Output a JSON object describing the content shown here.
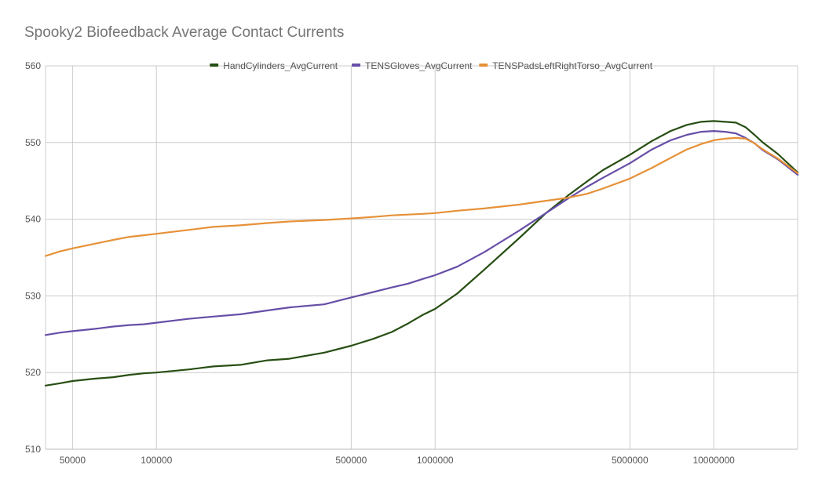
{
  "chart_data": {
    "type": "line",
    "title": "Spooky2 Biofeedback Average Contact Currents",
    "xlabel": "",
    "ylabel": "",
    "x_scale": "log",
    "xlim": [
      40000,
      20000000
    ],
    "ylim": [
      510,
      560
    ],
    "grid": true,
    "legend_position": "top",
    "y_ticks": [
      510,
      520,
      530,
      540,
      550,
      560
    ],
    "x_ticks": [
      50000,
      100000,
      500000,
      1000000,
      5000000,
      10000000
    ],
    "x_tick_labels": [
      "50000",
      "100000",
      "500000",
      "1000000",
      "5000000",
      "10000000"
    ],
    "x": [
      40000,
      45000,
      50000,
      60000,
      70000,
      80000,
      90000,
      100000,
      130000,
      160000,
      200000,
      250000,
      300000,
      400000,
      500000,
      600000,
      700000,
      800000,
      900000,
      1000000,
      1200000,
      1500000,
      2000000,
      2500000,
      3000000,
      3500000,
      4000000,
      5000000,
      6000000,
      7000000,
      8000000,
      9000000,
      10000000,
      11000000,
      12000000,
      13000000,
      14000000,
      15000000,
      17000000,
      20000000
    ],
    "series": [
      {
        "name": "HandCylinders_AvgCurrent",
        "color": "#274e13",
        "values": [
          518.3,
          518.6,
          518.9,
          519.2,
          519.4,
          519.7,
          519.9,
          520.0,
          520.4,
          520.8,
          521.0,
          521.6,
          521.8,
          522.6,
          523.5,
          524.4,
          525.3,
          526.4,
          527.5,
          528.3,
          530.3,
          533.4,
          537.5,
          540.8,
          543.1,
          544.9,
          546.4,
          548.4,
          550.2,
          551.5,
          552.3,
          552.7,
          552.8,
          552.7,
          552.6,
          552.0,
          551.0,
          550.0,
          548.5,
          546.1
        ]
      },
      {
        "name": "TENSGloves_AvgCurrent",
        "color": "#674ea7",
        "values": [
          524.9,
          525.2,
          525.4,
          525.7,
          526.0,
          526.2,
          526.3,
          526.5,
          527.0,
          527.3,
          527.6,
          528.1,
          528.5,
          528.9,
          529.8,
          530.5,
          531.1,
          531.6,
          532.2,
          532.7,
          533.8,
          535.7,
          538.5,
          540.8,
          542.7,
          544.2,
          545.4,
          547.3,
          549.1,
          550.3,
          551.0,
          551.4,
          551.5,
          551.4,
          551.2,
          550.6,
          549.9,
          549.0,
          547.8,
          545.8
        ]
      },
      {
        "name": "TENSPadsLeftRightTorso_AvgCurrent",
        "color": "#e69138",
        "values": [
          535.2,
          535.8,
          536.2,
          536.8,
          537.3,
          537.7,
          537.9,
          538.1,
          538.6,
          539.0,
          539.2,
          539.5,
          539.7,
          539.9,
          540.1,
          540.3,
          540.5,
          540.6,
          540.7,
          540.8,
          541.1,
          541.4,
          541.9,
          542.4,
          542.8,
          543.3,
          544.0,
          545.3,
          546.7,
          548.0,
          549.1,
          549.8,
          550.3,
          550.5,
          550.6,
          550.5,
          549.9,
          549.1,
          547.9,
          546.0
        ]
      }
    ]
  }
}
